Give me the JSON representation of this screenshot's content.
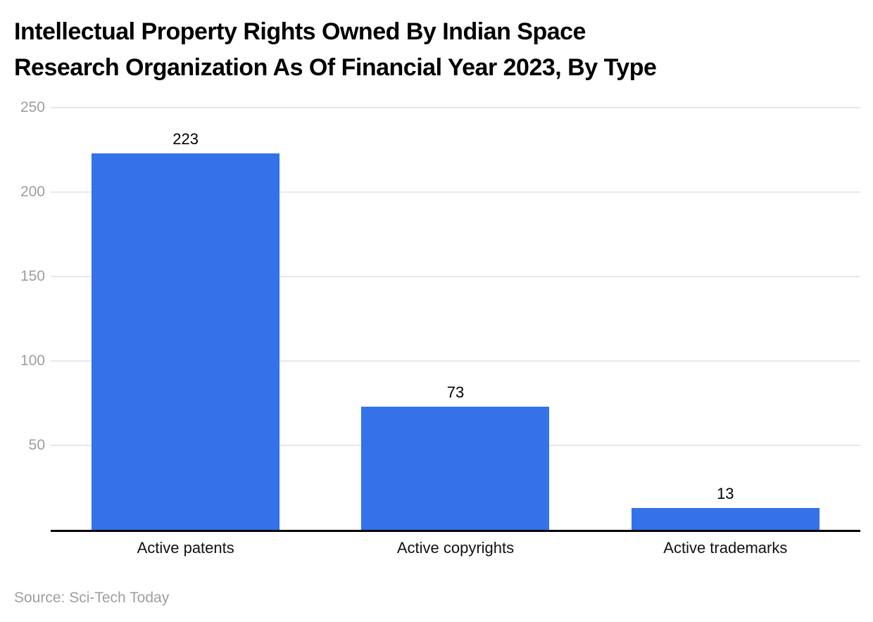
{
  "title_lines": [
    "Intellectual Property Rights Owned By Indian Space",
    "Research Organization As Of Financial Year 2023, By Type"
  ],
  "source": "Source: Sci-Tech Today",
  "colors": {
    "bar": "#3372e8",
    "grid": "#e8e8e8",
    "axis": "#000000",
    "tick_label": "#9e9e9e",
    "title": "#000000",
    "category_label": "#111111",
    "source": "#9e9e9e"
  },
  "chart_data": {
    "type": "bar",
    "title": "Intellectual Property Rights Owned By Indian Space Research Organization As Of Financial Year 2023, By Type",
    "categories": [
      "Active patents",
      "Active copyrights",
      "Active trademarks"
    ],
    "values": [
      223,
      73,
      13
    ],
    "value_labels": [
      "223",
      "73",
      "13"
    ],
    "xlabel": "",
    "ylabel": "",
    "ylim": [
      0,
      250
    ],
    "yticks": [
      50,
      100,
      150,
      200,
      250
    ],
    "grid": true,
    "legend": "none",
    "bar_color": "#3372e8"
  }
}
